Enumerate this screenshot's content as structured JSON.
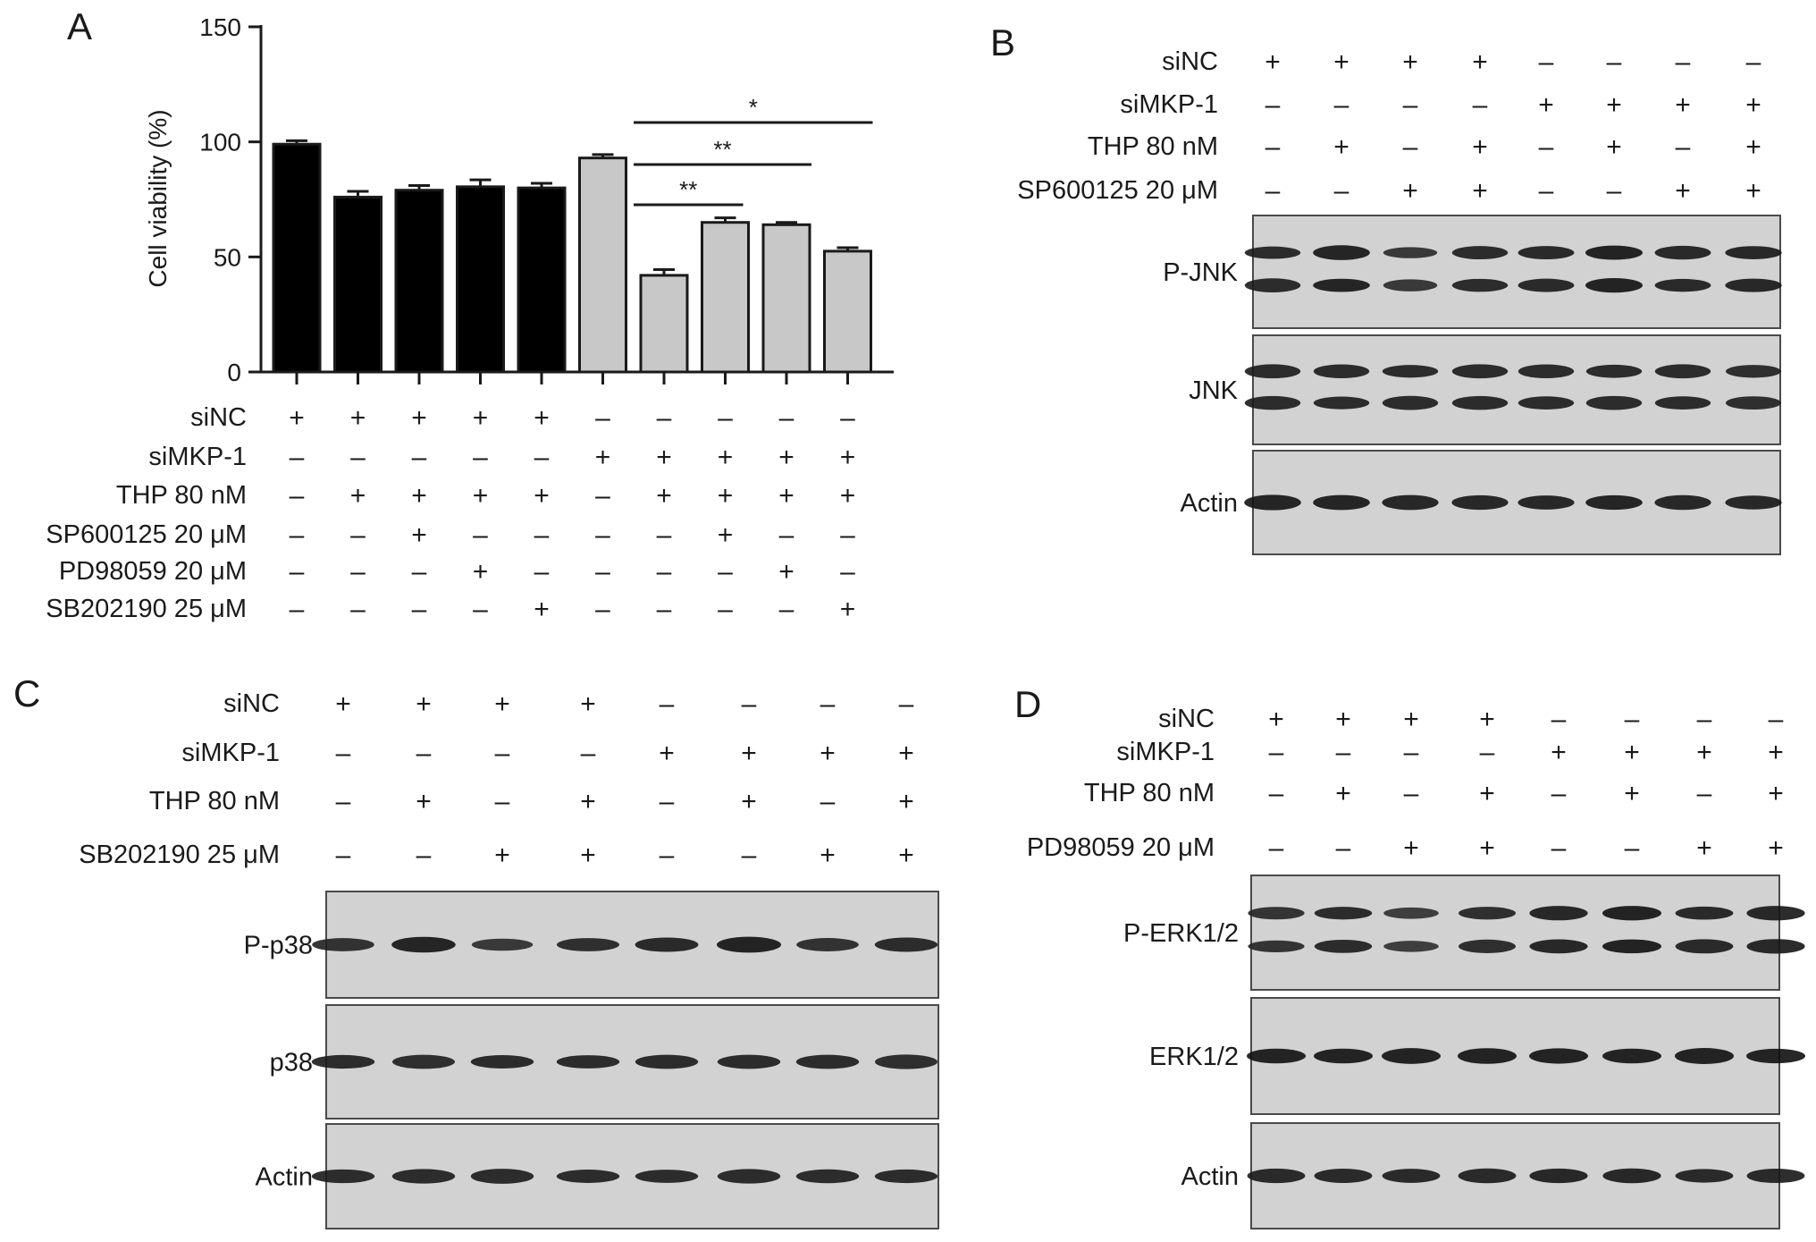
{
  "panel_letters": {
    "a": "A",
    "b": "B",
    "c": "C",
    "d": "D"
  },
  "symbols": {
    "plus": "+",
    "minus": "–"
  },
  "chart_data": {
    "type": "bar",
    "ylabel": "Cell viability (%)",
    "ylim": [
      0,
      150
    ],
    "yticks": [
      "0",
      "50",
      "100",
      "150"
    ],
    "groups": [
      {
        "name": "siNC",
        "color": "#000000",
        "bars": [
          0,
          1,
          2,
          3,
          4
        ]
      },
      {
        "name": "siMKP-1",
        "color": "#c8c8c8",
        "bars": [
          5,
          6,
          7,
          8,
          9
        ]
      }
    ],
    "values": [
      99,
      76,
      79,
      80.5,
      80,
      93,
      42,
      65,
      64,
      52.5
    ],
    "errors": [
      1.5,
      2.5,
      2,
      3,
      2,
      1.5,
      2.5,
      2,
      1,
      1.5
    ],
    "conditions": [
      {
        "label": "siNC",
        "signs": [
          "+",
          "+",
          "+",
          "+",
          "+",
          "–",
          "–",
          "–",
          "–",
          "–"
        ]
      },
      {
        "label": "siMKP-1",
        "signs": [
          "–",
          "–",
          "–",
          "–",
          "–",
          "+",
          "+",
          "+",
          "+",
          "+"
        ]
      },
      {
        "label": "THP 80 nM",
        "signs": [
          "–",
          "+",
          "+",
          "+",
          "+",
          "–",
          "+",
          "+",
          "+",
          "+"
        ]
      },
      {
        "label": "SP600125 20 μM",
        "signs": [
          "–",
          "–",
          "+",
          "–",
          "–",
          "–",
          "–",
          "+",
          "–",
          "–"
        ]
      },
      {
        "label": "PD98059 20 μM",
        "signs": [
          "–",
          "–",
          "–",
          "+",
          "–",
          "–",
          "–",
          "–",
          "+",
          "–"
        ]
      },
      {
        "label": "SB202190 25 μM",
        "signs": [
          "–",
          "–",
          "–",
          "–",
          "+",
          "–",
          "–",
          "–",
          "–",
          "+"
        ]
      }
    ],
    "significance": [
      {
        "from": 6,
        "to": 9,
        "label": "*"
      },
      {
        "from": 6,
        "to": 8,
        "label": "**"
      },
      {
        "from": 6,
        "to": 7,
        "label": "**"
      }
    ]
  },
  "western_blots": [
    {
      "panel": "B",
      "conditions": [
        {
          "label": "siNC",
          "signs": [
            "+",
            "+",
            "+",
            "+",
            "–",
            "–",
            "–",
            "–"
          ]
        },
        {
          "label": "siMKP-1",
          "signs": [
            "–",
            "–",
            "–",
            "–",
            "+",
            "+",
            "+",
            "+"
          ]
        },
        {
          "label": "THP 80 nM",
          "signs": [
            "–",
            "+",
            "–",
            "+",
            "–",
            "+",
            "–",
            "+"
          ]
        },
        {
          "label": "SP600125 20 μM",
          "signs": [
            "–",
            "–",
            "+",
            "+",
            "–",
            "–",
            "+",
            "+"
          ]
        }
      ],
      "blots": [
        {
          "label": "P-JNK",
          "bands": 2,
          "intensity": [
            0.8,
            0.95,
            0.55,
            0.8,
            0.85,
            1.0,
            0.85,
            0.9
          ]
        },
        {
          "label": "JNK",
          "bands": 2,
          "intensity": [
            0.8,
            0.8,
            0.8,
            0.8,
            0.8,
            0.8,
            0.8,
            0.75
          ]
        },
        {
          "label": "Actin",
          "bands": 1,
          "intensity": [
            0.95,
            0.95,
            0.9,
            0.9,
            0.9,
            0.95,
            0.9,
            0.9
          ]
        }
      ]
    },
    {
      "panel": "C",
      "conditions": [
        {
          "label": "siNC",
          "signs": [
            "+",
            "+",
            "+",
            "+",
            "–",
            "–",
            "–",
            "–"
          ]
        },
        {
          "label": "siMKP-1",
          "signs": [
            "–",
            "–",
            "–",
            "–",
            "+",
            "+",
            "+",
            "+"
          ]
        },
        {
          "label": "THP 80 nM",
          "signs": [
            "–",
            "+",
            "–",
            "+",
            "–",
            "+",
            "–",
            "+"
          ]
        },
        {
          "label": "SB202190 25 μM",
          "signs": [
            "–",
            "–",
            "+",
            "+",
            "–",
            "–",
            "+",
            "+"
          ]
        }
      ],
      "blots": [
        {
          "label": "P-p38",
          "bands": 1,
          "intensity": [
            0.7,
            0.95,
            0.55,
            0.75,
            0.85,
            1.0,
            0.7,
            0.8
          ]
        },
        {
          "label": "p38",
          "bands": 1,
          "intensity": [
            0.8,
            0.75,
            0.8,
            0.8,
            0.8,
            0.8,
            0.8,
            0.75
          ]
        },
        {
          "label": "Actin",
          "bands": 1,
          "intensity": [
            0.8,
            0.8,
            0.8,
            0.8,
            0.8,
            0.8,
            0.8,
            0.8
          ]
        }
      ]
    },
    {
      "panel": "D",
      "conditions": [
        {
          "label": "siNC",
          "signs": [
            "+",
            "+",
            "+",
            "+",
            "–",
            "–",
            "–",
            "–"
          ]
        },
        {
          "label": "siMKP-1",
          "signs": [
            "–",
            "–",
            "–",
            "–",
            "+",
            "+",
            "+",
            "+"
          ]
        },
        {
          "label": "THP 80 nM",
          "signs": [
            "–",
            "+",
            "–",
            "+",
            "–",
            "+",
            "–",
            "+"
          ]
        },
        {
          "label": "PD98059 20 μM",
          "signs": [
            "–",
            "–",
            "+",
            "+",
            "–",
            "–",
            "+",
            "+"
          ]
        }
      ],
      "blots": [
        {
          "label": "P-ERK1/2",
          "bands": 2,
          "intensity": [
            0.65,
            0.8,
            0.45,
            0.75,
            0.9,
            1.0,
            0.85,
            0.9
          ]
        },
        {
          "label": "ERK1/2",
          "bands": 1,
          "intensity": [
            1.0,
            1.0,
            1.0,
            1.0,
            1.0,
            1.0,
            1.0,
            1.0
          ]
        },
        {
          "label": "Actin",
          "bands": 1,
          "intensity": [
            0.85,
            0.85,
            0.85,
            0.85,
            0.9,
            0.9,
            0.85,
            0.85
          ]
        }
      ]
    }
  ]
}
